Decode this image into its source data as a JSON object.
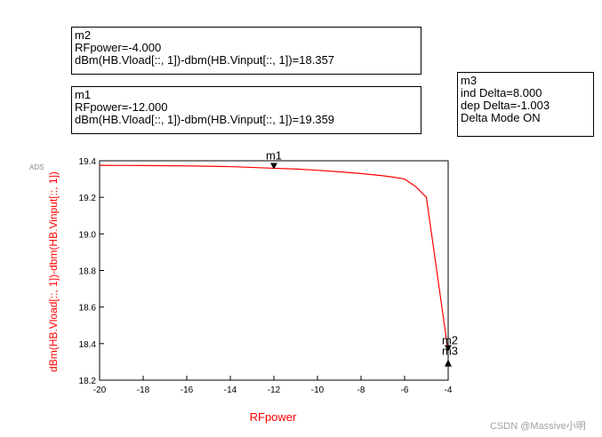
{
  "markers": {
    "m2": {
      "name": "m2",
      "line1": "RFpower=-4.000",
      "line2": "dBm(HB.Vload[::, 1])-dbm(HB.Vinput[::, 1])=18.357"
    },
    "m1": {
      "name": "m1",
      "line1": "RFpower=-12.000",
      "line2": "dBm(HB.Vload[::, 1])-dbm(HB.Vinput[::, 1])=19.359"
    },
    "m3": {
      "name": "m3",
      "line1": "ind Delta=8.000",
      "line2": "dep Delta=-1.003",
      "line3": "Delta Mode ON"
    }
  },
  "ads_logo": "ADS",
  "watermark": "CSDN @Massive小明",
  "colors": {
    "trace": "#ff0000",
    "axis_label": "#ff0000",
    "frame": "#000000",
    "marker": "#000000"
  },
  "chart_data": {
    "type": "line",
    "title": "",
    "xlabel": "RFpower",
    "ylabel": "dBm(HB.Vload[::, 1])-dbm(HB.Vinput[::, 1])",
    "xlim": [
      -20,
      -4
    ],
    "ylim": [
      18.2,
      19.4
    ],
    "xticks": [
      -20,
      -18,
      -16,
      -14,
      -12,
      -10,
      -8,
      -6,
      -4
    ],
    "yticks": [
      18.2,
      18.4,
      18.6,
      18.8,
      19.0,
      19.2,
      19.4
    ],
    "grid": false,
    "series": [
      {
        "x": [
          -20,
          -18,
          -16,
          -14,
          -12,
          -11,
          -10,
          -9,
          -8,
          -7,
          -6.5,
          -6,
          -5.5,
          -5,
          -4
        ],
        "y": [
          19.375,
          19.374,
          19.372,
          19.368,
          19.359,
          19.355,
          19.348,
          19.34,
          19.33,
          19.318,
          19.31,
          19.3,
          19.26,
          19.2,
          18.357
        ]
      }
    ],
    "markers": [
      {
        "label": "m1",
        "x": -12,
        "y": 19.359
      },
      {
        "label": "m2",
        "x": -4,
        "y": 18.357
      },
      {
        "label": "m3",
        "x": -4,
        "y": 18.357
      }
    ]
  }
}
